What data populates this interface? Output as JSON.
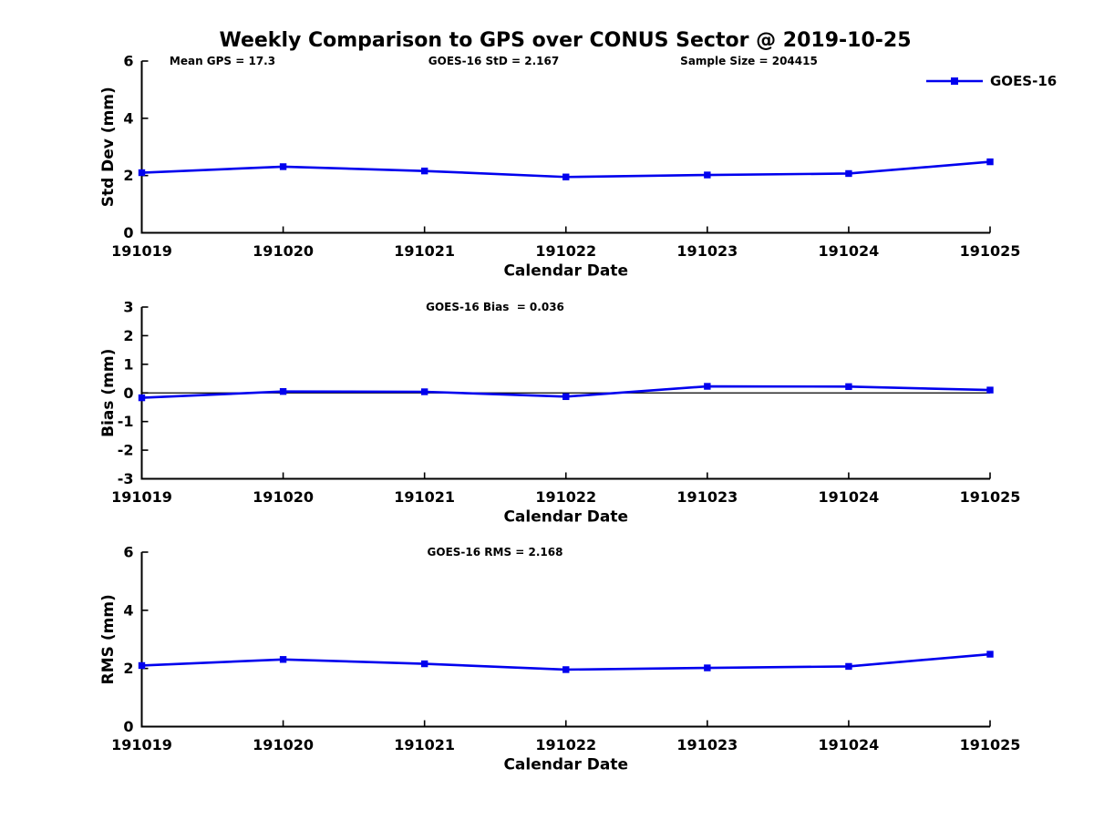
{
  "page": {
    "title": "Weekly Comparison to GPS over CONUS Sector @ 2019-10-25"
  },
  "legend": {
    "label": "GOES-16",
    "position": "top-right"
  },
  "colors": {
    "line": "#0000EE",
    "text": "#000000",
    "axis": "#000000",
    "background": "#FFFFFF"
  },
  "chart_data": [
    {
      "type": "line",
      "name": "std-dev",
      "ylabel": "Std Dev (mm)",
      "xlabel": "Calendar Date",
      "ylim": [
        0,
        6
      ],
      "yticks": [
        0,
        2,
        4,
        6
      ],
      "grid": false,
      "categories": [
        "191019",
        "191020",
        "191021",
        "191022",
        "191023",
        "191024",
        "191025"
      ],
      "series": [
        {
          "name": "GOES-16",
          "values": [
            2.1,
            2.31,
            2.16,
            1.95,
            2.02,
            2.07,
            2.48
          ]
        }
      ],
      "annotations": [
        "Mean GPS = 17.3",
        "GOES-16 StD = 2.167",
        "Sample Size = 204415"
      ]
    },
    {
      "type": "line",
      "name": "bias",
      "ylabel": "Bias (mm)",
      "xlabel": "Calendar Date",
      "ylim": [
        -3,
        3
      ],
      "yticks": [
        -3,
        -2,
        -1,
        0,
        1,
        2,
        3
      ],
      "grid": false,
      "zero_line": true,
      "categories": [
        "191019",
        "191020",
        "191021",
        "191022",
        "191023",
        "191024",
        "191025"
      ],
      "series": [
        {
          "name": "GOES-16",
          "values": [
            -0.17,
            0.05,
            0.04,
            -0.13,
            0.23,
            0.22,
            0.1
          ]
        }
      ],
      "annotations": [
        "GOES-16 Bias  = 0.036"
      ]
    },
    {
      "type": "line",
      "name": "rms",
      "ylabel": "RMS (mm)",
      "xlabel": "Calendar Date",
      "ylim": [
        0,
        6
      ],
      "yticks": [
        0,
        2,
        4,
        6
      ],
      "grid": false,
      "categories": [
        "191019",
        "191020",
        "191021",
        "191022",
        "191023",
        "191024",
        "191025"
      ],
      "series": [
        {
          "name": "GOES-16",
          "values": [
            2.1,
            2.31,
            2.16,
            1.96,
            2.02,
            2.07,
            2.49
          ]
        }
      ],
      "annotations": [
        "GOES-16 RMS = 2.168"
      ]
    }
  ]
}
